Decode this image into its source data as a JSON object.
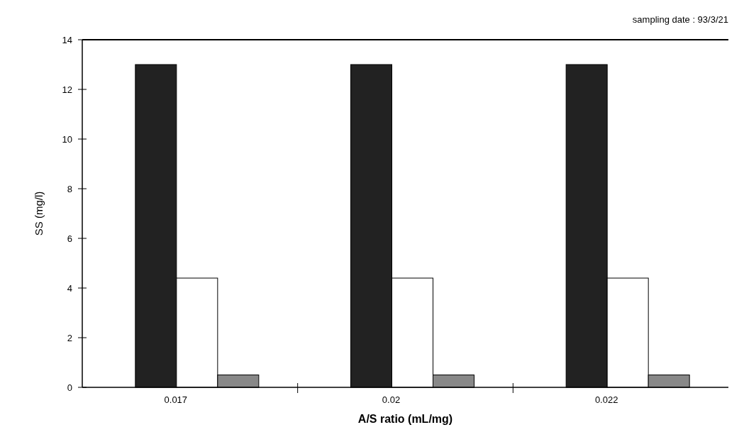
{
  "chart_data": {
    "type": "bar",
    "xlabel": "A/S ratio (mL/mg)",
    "ylabel": "SS (mg/l)",
    "categories": [
      "0.017",
      "0.02",
      "0.022"
    ],
    "series": [
      {
        "color": "#222222",
        "values": [
          13,
          13,
          13
        ]
      },
      {
        "color": "#ffffff",
        "values": [
          4.4,
          4.4,
          4.4
        ]
      },
      {
        "color": "#888888",
        "values": [
          0.5,
          0.5,
          0.5
        ]
      }
    ],
    "ylim": [
      0,
      14
    ],
    "yticks": [
      0,
      2,
      4,
      6,
      8,
      10,
      12,
      14
    ],
    "annotations": [
      "sampling date : 93/3/21"
    ],
    "grid": false
  }
}
